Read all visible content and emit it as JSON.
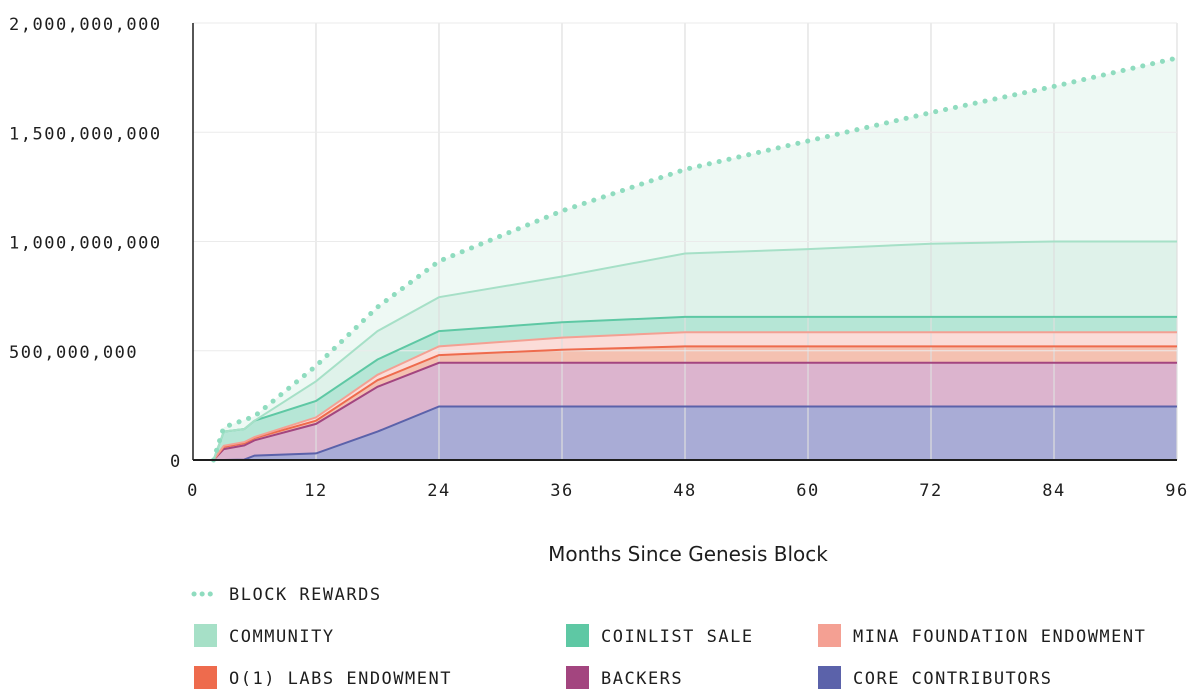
{
  "chart_data": {
    "type": "area",
    "title": "",
    "xlabel": "Months Since Genesis Block",
    "ylabel": "",
    "xlim": [
      0,
      96
    ],
    "ylim": [
      0,
      2000000000
    ],
    "x_ticks": [
      0,
      12,
      24,
      36,
      48,
      60,
      72,
      84,
      96
    ],
    "x_tick_labels": [
      "0",
      "12",
      "24",
      "36",
      "48",
      "60",
      "72",
      "84",
      "96"
    ],
    "y_ticks": [
      0,
      500000000,
      1000000000,
      1500000000,
      2000000000
    ],
    "y_tick_labels": [
      "0",
      "500,000,000",
      "1,000,000,000",
      "1,500,000,000",
      "2,000,000,000"
    ],
    "grid": "vertical",
    "x": [
      0,
      1,
      2,
      3,
      5,
      6,
      12,
      18,
      24,
      36,
      48,
      60,
      72,
      84,
      96
    ],
    "stacked_series": [
      {
        "name": "CORE CONTRIBUTORS",
        "color": "#5b62aa",
        "fill": "#a9acd6",
        "values": [
          0,
          0,
          0,
          0,
          2000000,
          20000000,
          30000000,
          130000000,
          245000000,
          245000000,
          245000000,
          245000000,
          245000000,
          245000000,
          245000000
        ]
      },
      {
        "name": "BACKERS",
        "color": "#a3457f",
        "fill": "#dcb4ce",
        "values": [
          0,
          0,
          0,
          50000000,
          65000000,
          70000000,
          135000000,
          205000000,
          200000000,
          200000000,
          200000000,
          200000000,
          200000000,
          200000000,
          200000000
        ]
      },
      {
        "name": "O(1) LABS ENDOWMENT",
        "color": "#ee6b4d",
        "fill": "#f4c1b1",
        "values": [
          0,
          0,
          0,
          10000000,
          10000000,
          10000000,
          15000000,
          30000000,
          35000000,
          60000000,
          75000000,
          75000000,
          75000000,
          75000000,
          75000000
        ]
      },
      {
        "name": "MINA FOUNDATION ENDOWMENT",
        "color": "#f4a093",
        "fill": "#fbdcd8",
        "values": [
          0,
          0,
          0,
          5000000,
          5000000,
          5000000,
          15000000,
          25000000,
          40000000,
          55000000,
          65000000,
          65000000,
          65000000,
          65000000,
          65000000
        ]
      },
      {
        "name": "COINLIST SALE",
        "color": "#5ec8a4",
        "fill": "#b6e6d6",
        "values": [
          0,
          0,
          0,
          65000000,
          60000000,
          75000000,
          75000000,
          70000000,
          70000000,
          70000000,
          70000000,
          70000000,
          70000000,
          70000000,
          70000000
        ]
      },
      {
        "name": "COMMUNITY",
        "color": "#a6e0c7",
        "fill": "#dff2ea",
        "values": [
          0,
          0,
          0,
          0,
          0,
          0,
          90000000,
          130000000,
          155000000,
          210000000,
          290000000,
          310000000,
          335000000,
          345000000,
          345000000
        ]
      }
    ],
    "line_series": [
      {
        "name": "BLOCK REWARDS",
        "style": "dotted",
        "color": "#8fdcbf",
        "fill": "#eef9f4",
        "x": [
          0,
          1,
          2,
          3,
          6,
          12,
          18,
          24,
          36,
          48,
          60,
          72,
          84,
          96
        ],
        "values": [
          0,
          0,
          0,
          150000000,
          200000000,
          430000000,
          700000000,
          910000000,
          1140000000,
          1330000000,
          1460000000,
          1590000000,
          1710000000,
          1840000000
        ]
      }
    ],
    "legend": {
      "placement": "bottom",
      "entries": [
        "BLOCK REWARDS",
        "COMMUNITY",
        "COINLIST SALE",
        "MINA FOUNDATION ENDOWMENT",
        "O(1) LABS ENDOWMENT",
        "BACKERS",
        "CORE CONTRIBUTORS"
      ]
    }
  }
}
